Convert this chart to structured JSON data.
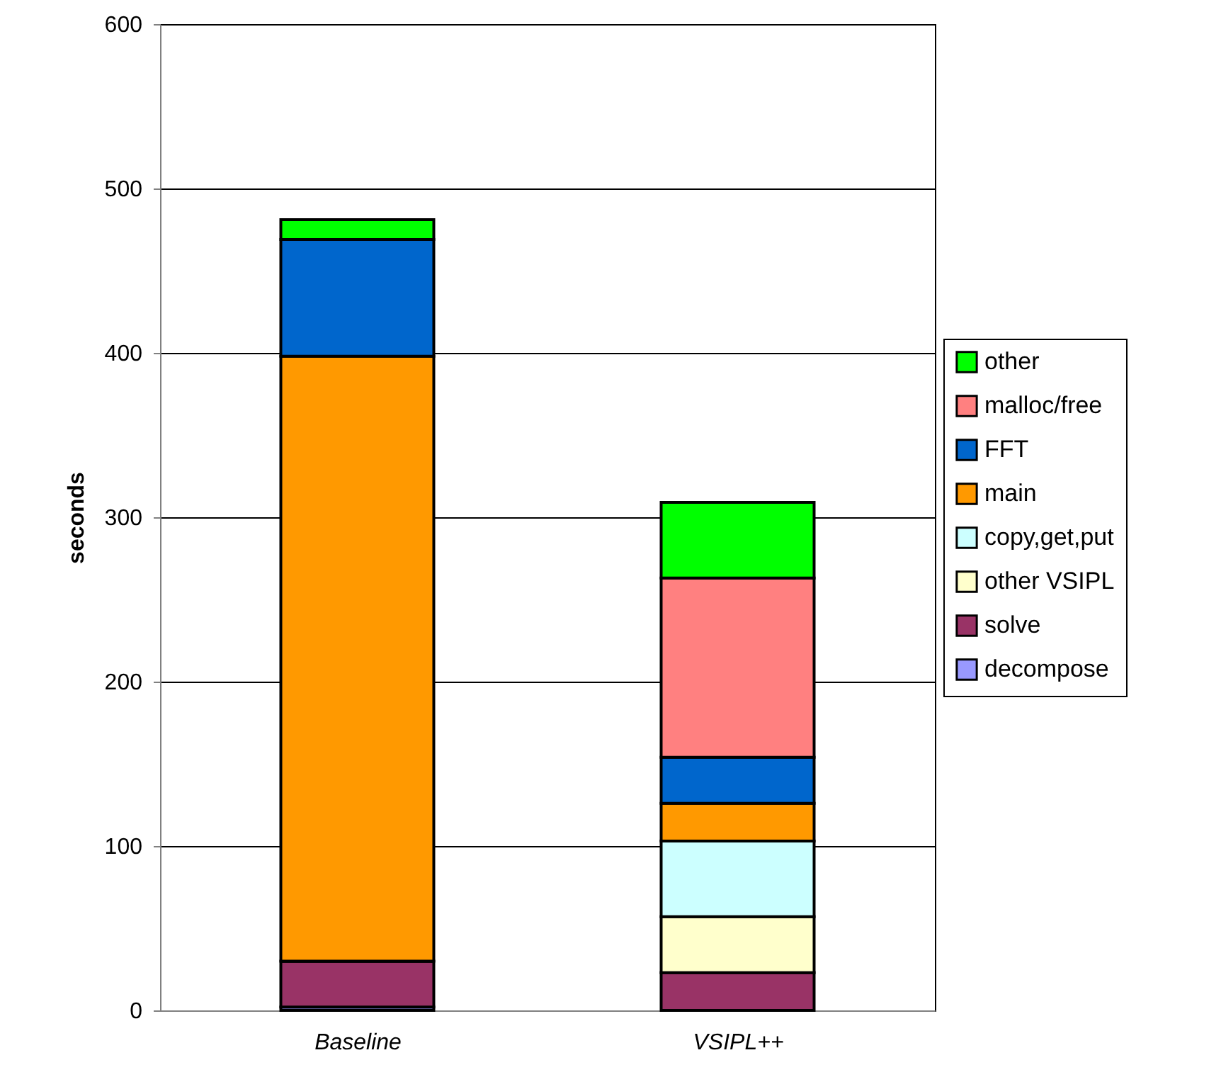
{
  "chart_data": {
    "type": "bar",
    "stacked": true,
    "ylabel": "seconds",
    "categories": [
      "Baseline",
      "VSIPL++"
    ],
    "ylim": [
      0,
      600
    ],
    "yticks": [
      0,
      100,
      200,
      300,
      400,
      500,
      600
    ],
    "grid": "y",
    "legend": "right",
    "series": [
      {
        "name": "decompose",
        "color": "#9999ff",
        "values": [
          2,
          0
        ]
      },
      {
        "name": "solve",
        "color": "#993366",
        "values": [
          28,
          23
        ]
      },
      {
        "name": "other VSIPL",
        "color": "#ffffcc",
        "values": [
          0,
          34
        ]
      },
      {
        "name": "copy,get,put",
        "color": "#ccffff",
        "values": [
          0,
          46
        ]
      },
      {
        "name": "main",
        "color": "#ff9900",
        "values": [
          368,
          23
        ]
      },
      {
        "name": "FFT",
        "color": "#0066cc",
        "values": [
          71,
          28
        ]
      },
      {
        "name": "malloc/free",
        "color": "#ff8080",
        "values": [
          0,
          109
        ]
      },
      {
        "name": "other",
        "color": "#00ff00",
        "values": [
          12,
          46
        ]
      }
    ]
  }
}
